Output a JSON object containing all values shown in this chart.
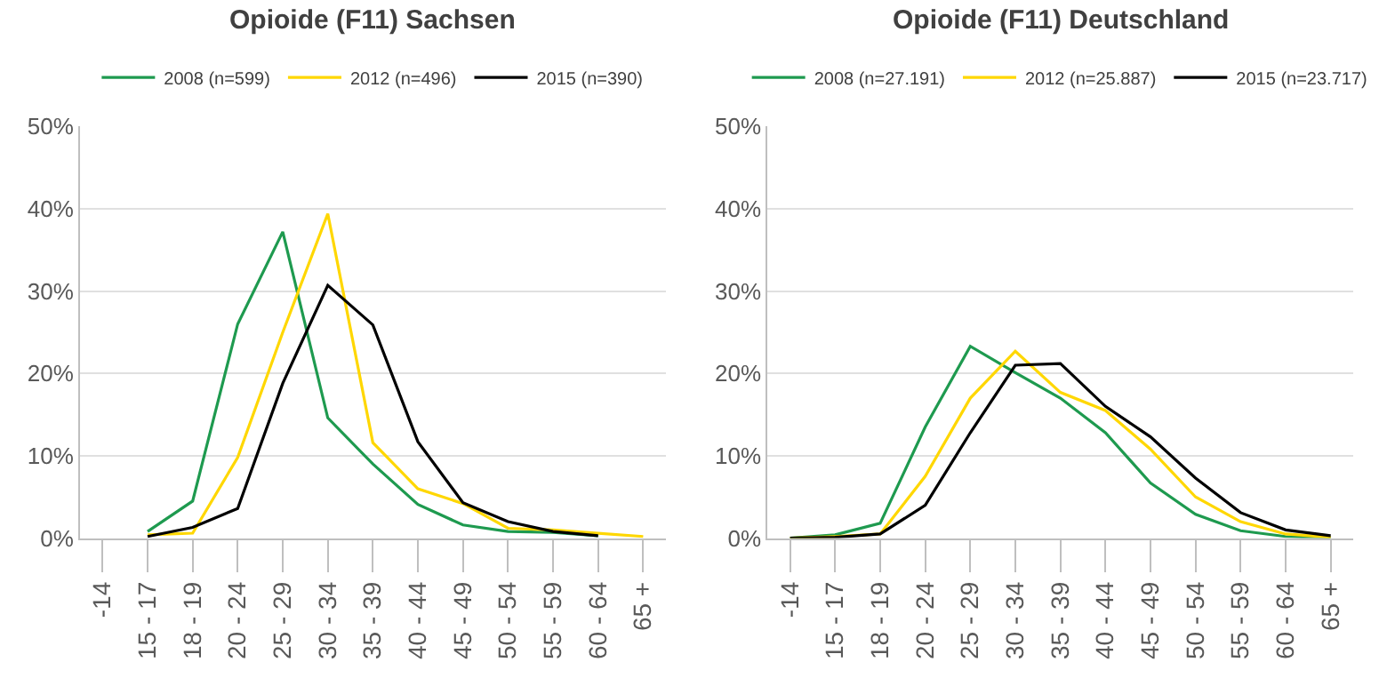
{
  "chart_data": [
    {
      "type": "line",
      "title": "Opioide (F11) Sachsen",
      "categories": [
        "-14",
        "15 - 17",
        "18 - 19",
        "20 - 24",
        "25 - 29",
        "30 - 34",
        "35 - 39",
        "40 - 44",
        "45 - 49",
        "50 - 54",
        "55 - 59",
        "60 - 64",
        "65 +"
      ],
      "series": [
        {
          "name": "2008 (n=599)",
          "color": "#1e9a4f",
          "values": [
            null,
            0.8,
            4.5,
            26,
            37.2,
            14.6,
            9,
            4.1,
            1.6,
            0.8,
            0.7,
            0.3,
            null
          ]
        },
        {
          "name": "2012 (n=496)",
          "color": "#ffd700",
          "values": [
            null,
            0.4,
            0.6,
            9.8,
            25,
            39.4,
            11.6,
            6,
            4.2,
            1.2,
            1.0,
            0.6,
            0.2
          ]
        },
        {
          "name": "2015 (n=390)",
          "color": "#000000",
          "values": [
            null,
            0.2,
            1.3,
            3.6,
            18.8,
            30.7,
            25.9,
            11.7,
            4.3,
            2.0,
            0.8,
            0.3,
            null
          ]
        }
      ],
      "ylim": [
        0,
        50
      ],
      "yticks": [
        {
          "value": 0,
          "label": "0%"
        },
        {
          "value": 10,
          "label": "10%"
        },
        {
          "value": 20,
          "label": "20%"
        },
        {
          "value": 30,
          "label": "30%"
        },
        {
          "value": 40,
          "label": "40%"
        },
        {
          "value": 50,
          "label": "50%"
        }
      ],
      "grid": "y",
      "legend": "top",
      "marker": "none",
      "line_style": "solid"
    },
    {
      "type": "line",
      "title": "Opioide (F11) Deutschland",
      "categories": [
        "-14",
        "15 - 17",
        "18 - 19",
        "20 - 24",
        "25 - 29",
        "30 - 34",
        "35 - 39",
        "40 - 44",
        "45 - 49",
        "50 - 54",
        "55 - 59",
        "60 - 64",
        "65 +"
      ],
      "series": [
        {
          "name": "2008 (n=27.191)",
          "color": "#1e9a4f",
          "values": [
            0,
            0.4,
            1.8,
            13.5,
            23.3,
            20.1,
            17,
            12.8,
            6.7,
            2.9,
            0.9,
            0.2,
            0
          ]
        },
        {
          "name": "2012 (n=25.887)",
          "color": "#ffd700",
          "values": [
            0,
            0.2,
            0.5,
            7.5,
            17,
            22.7,
            17.7,
            15.5,
            10.8,
            5,
            2,
            0.5,
            0.1
          ]
        },
        {
          "name": "2015 (n=23.717)",
          "color": "#000000",
          "values": [
            0,
            0.1,
            0.5,
            4,
            12.8,
            21,
            21.2,
            16,
            12.3,
            7.3,
            3.1,
            1.0,
            0.3
          ]
        }
      ],
      "ylim": [
        0,
        50
      ],
      "yticks": [
        {
          "value": 0,
          "label": "0%"
        },
        {
          "value": 10,
          "label": "10%"
        },
        {
          "value": 20,
          "label": "20%"
        },
        {
          "value": 30,
          "label": "30%"
        },
        {
          "value": 40,
          "label": "40%"
        },
        {
          "value": 50,
          "label": "50%"
        }
      ],
      "grid": "y",
      "legend": "top",
      "marker": "none",
      "line_style": "solid"
    }
  ]
}
